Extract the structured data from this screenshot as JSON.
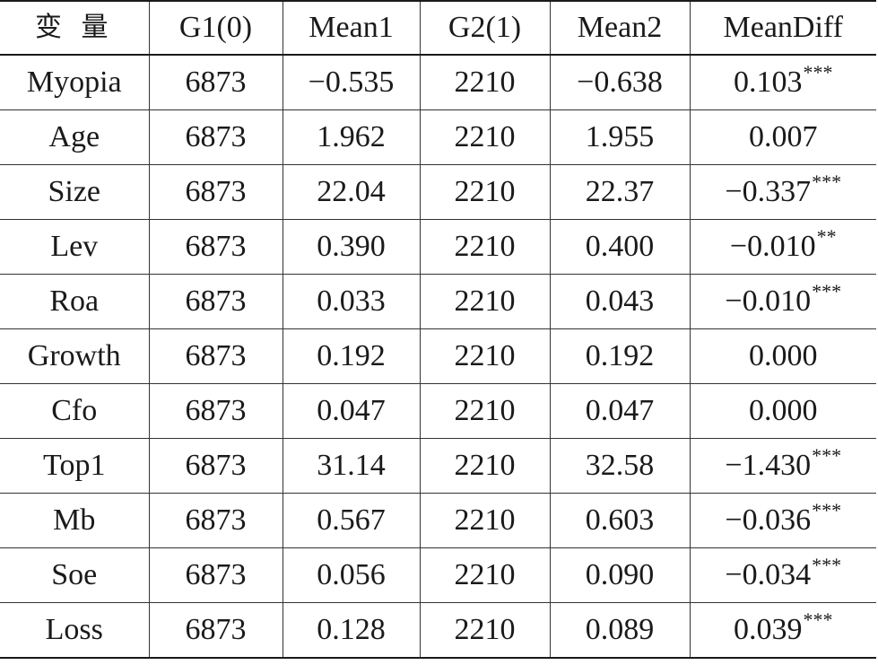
{
  "table": {
    "headers": [
      "变 量",
      "G1(0)",
      "Mean1",
      "G2(1)",
      "Mean2",
      "MeanDiff"
    ],
    "rows": [
      {
        "variable": "Myopia",
        "g1": "6873",
        "mean1": "−0.535",
        "g2": "2210",
        "mean2": "−0.638",
        "diff": "0.103",
        "sig": "***"
      },
      {
        "variable": "Age",
        "g1": "6873",
        "mean1": "1.962",
        "g2": "2210",
        "mean2": "1.955",
        "diff": "0.007",
        "sig": ""
      },
      {
        "variable": "Size",
        "g1": "6873",
        "mean1": "22.04",
        "g2": "2210",
        "mean2": "22.37",
        "diff": "−0.337",
        "sig": "***"
      },
      {
        "variable": "Lev",
        "g1": "6873",
        "mean1": "0.390",
        "g2": "2210",
        "mean2": "0.400",
        "diff": "−0.010",
        "sig": "**"
      },
      {
        "variable": "Roa",
        "g1": "6873",
        "mean1": "0.033",
        "g2": "2210",
        "mean2": "0.043",
        "diff": "−0.010",
        "sig": "***"
      },
      {
        "variable": "Growth",
        "g1": "6873",
        "mean1": "0.192",
        "g2": "2210",
        "mean2": "0.192",
        "diff": "0.000",
        "sig": ""
      },
      {
        "variable": "Cfo",
        "g1": "6873",
        "mean1": "0.047",
        "g2": "2210",
        "mean2": "0.047",
        "diff": "0.000",
        "sig": ""
      },
      {
        "variable": "Top1",
        "g1": "6873",
        "mean1": "31.14",
        "g2": "2210",
        "mean2": "32.58",
        "diff": "−1.430",
        "sig": "***"
      },
      {
        "variable": "Mb",
        "g1": "6873",
        "mean1": "0.567",
        "g2": "2210",
        "mean2": "0.603",
        "diff": "−0.036",
        "sig": "***"
      },
      {
        "variable": "Soe",
        "g1": "6873",
        "mean1": "0.056",
        "g2": "2210",
        "mean2": "0.090",
        "diff": "−0.034",
        "sig": "***"
      },
      {
        "variable": "Loss",
        "g1": "6873",
        "mean1": "0.128",
        "g2": "2210",
        "mean2": "0.089",
        "diff": "0.039",
        "sig": "***"
      }
    ]
  }
}
